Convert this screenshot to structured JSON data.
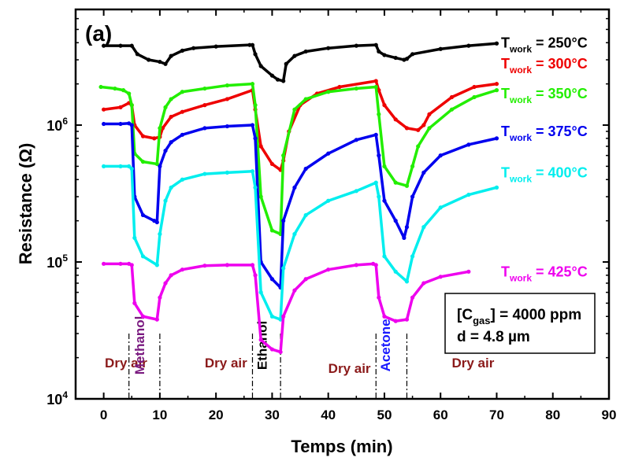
{
  "chart_data": {
    "type": "line",
    "panel_label": "(a)",
    "xlabel": "Temps (min)",
    "ylabel": "Resistance (Ω)",
    "xlim": [
      -5,
      90
    ],
    "ylim": [
      10000,
      7000000
    ],
    "yscale": "log",
    "xticks": [
      0,
      10,
      20,
      30,
      40,
      50,
      60,
      70,
      80,
      90
    ],
    "xtick_labels": [
      "0",
      "10",
      "20",
      "30",
      "40",
      "50",
      "60",
      "70",
      "80",
      "90"
    ],
    "yticks": [
      10000,
      100000,
      1000000
    ],
    "ytick_labels": [
      {
        "base": "10",
        "exp": "4"
      },
      {
        "base": "10",
        "exp": "5"
      },
      {
        "base": "10",
        "exp": "6"
      }
    ],
    "regions": [
      {
        "label": "Dry air",
        "color": "#8b1a1a",
        "vertical": false,
        "x": 0.2,
        "y": 17000
      },
      {
        "label": "Methanol",
        "color": "#7a1a80",
        "vertical": true,
        "x": 7.2,
        "y": 17000
      },
      {
        "label": "Dry air",
        "color": "#8b1a1a",
        "vertical": false,
        "x": 18,
        "y": 17000
      },
      {
        "label": "Ethanol",
        "color": "#000000",
        "vertical": true,
        "x": 29,
        "y": 17000
      },
      {
        "label": "Dry air",
        "color": "#8b1a1a",
        "vertical": false,
        "x": 40,
        "y": 15500
      },
      {
        "label": "Acetone",
        "color": "#1a1aff",
        "vertical": true,
        "x": 51,
        "y": 17000
      },
      {
        "label": "Dry air",
        "color": "#8b1a1a",
        "vertical": false,
        "x": 62,
        "y": 17000
      }
    ],
    "dividers": [
      {
        "x": 4.5,
        "ymin": 10000,
        "ymax": 30000
      },
      {
        "x": 10,
        "ymin": 10000,
        "ymax": 30000
      },
      {
        "x": 26.5,
        "ymin": 10000,
        "ymax": 30000
      },
      {
        "x": 31.5,
        "ymin": 10000,
        "ymax": 30000
      },
      {
        "x": 48.5,
        "ymin": 10000,
        "ymax": 30000
      },
      {
        "x": 54,
        "ymin": 10000,
        "ymax": 30000
      }
    ],
    "info_box": {
      "line1_prefix": "[C",
      "line1_sub": "gas",
      "line1_suffix": "] = 4000 ppm",
      "line2": "d = 4.8 µm"
    },
    "series": [
      {
        "name_main": "T",
        "name_sub": "work",
        "name_value": " = 250°C",
        "color": "#000000",
        "label_y": 4000000,
        "x": [
          0,
          3,
          5,
          6,
          8,
          10,
          11,
          12,
          14,
          16,
          20,
          26,
          26.5,
          27,
          28,
          30,
          31,
          32,
          32.5,
          34,
          36,
          40,
          45,
          48.5,
          49,
          50,
          52,
          53.5,
          54,
          55,
          60,
          65,
          70
        ],
        "y": [
          3800000,
          3800000,
          3800000,
          3300000,
          3000000,
          2900000,
          2800000,
          3200000,
          3500000,
          3650000,
          3750000,
          3850000,
          3850000,
          3300000,
          2700000,
          2300000,
          2150000,
          2100000,
          2800000,
          3200000,
          3450000,
          3650000,
          3800000,
          3850000,
          3450000,
          3250000,
          3100000,
          3000000,
          3050000,
          3300000,
          3600000,
          3800000,
          3950000
        ]
      },
      {
        "name_main": "T",
        "name_sub": "work",
        "name_value": " = 300°C",
        "color": "#ee0000",
        "label_y": 2800000,
        "x": [
          0,
          3,
          4.5,
          5,
          5.5,
          7,
          9,
          10,
          10.5,
          12,
          14,
          18,
          22,
          26.5,
          27,
          28,
          30,
          31.5,
          32,
          33,
          35,
          38,
          42,
          48.5,
          49,
          50,
          52,
          54,
          56,
          57,
          58,
          62,
          66,
          70
        ],
        "y": [
          1300000,
          1350000,
          1450000,
          1400000,
          1000000,
          830000,
          800000,
          820000,
          950000,
          1150000,
          1250000,
          1400000,
          1550000,
          1800000,
          1300000,
          700000,
          520000,
          470000,
          550000,
          900000,
          1400000,
          1700000,
          1900000,
          2100000,
          1800000,
          1400000,
          1100000,
          950000,
          920000,
          1000000,
          1200000,
          1600000,
          1900000,
          2000000
        ]
      },
      {
        "name_main": "T",
        "name_sub": "work",
        "name_value": " = 350°C",
        "color": "#22ee00",
        "label_y": 1700000,
        "x": [
          -0.5,
          2,
          3.5,
          4.5,
          5,
          5.5,
          7,
          9.5,
          10,
          11,
          12,
          14,
          18,
          22,
          26.5,
          27,
          28,
          30,
          31.5,
          32,
          34,
          36,
          40,
          45,
          48.5,
          49,
          50,
          52,
          54,
          55,
          56,
          58,
          62,
          66,
          70
        ],
        "y": [
          1900000,
          1850000,
          1800000,
          1700000,
          1400000,
          620000,
          540000,
          520000,
          950000,
          1350000,
          1550000,
          1750000,
          1850000,
          1950000,
          2000000,
          1400000,
          300000,
          170000,
          160000,
          600000,
          1300000,
          1550000,
          1750000,
          1850000,
          1900000,
          1200000,
          500000,
          380000,
          360000,
          500000,
          700000,
          950000,
          1300000,
          1600000,
          1800000
        ]
      },
      {
        "name_main": "T",
        "name_sub": "work",
        "name_value": " = 375°C",
        "color": "#0000ee",
        "label_y": 900000,
        "x": [
          0,
          3,
          4.5,
          5,
          5.5,
          7,
          9,
          9.5,
          10,
          11,
          12,
          14,
          18,
          22,
          26.5,
          27,
          28,
          30,
          31.5,
          32,
          34,
          36,
          40,
          45,
          48.5,
          49,
          50,
          52,
          53.5,
          54,
          55,
          57,
          60,
          65,
          70
        ],
        "y": [
          1020000,
          1020000,
          1030000,
          1000000,
          300000,
          220000,
          200000,
          195000,
          500000,
          650000,
          750000,
          850000,
          950000,
          980000,
          1000000,
          800000,
          100000,
          75000,
          65000,
          200000,
          350000,
          480000,
          620000,
          780000,
          850000,
          600000,
          280000,
          200000,
          150000,
          180000,
          300000,
          450000,
          600000,
          720000,
          800000
        ]
      },
      {
        "name_main": "T",
        "name_sub": "work",
        "name_value": " = 400°C",
        "color": "#00eeee",
        "label_y": 450000,
        "x": [
          0,
          3,
          4.5,
          5,
          5.5,
          7,
          9.5,
          10,
          11,
          12,
          14,
          18,
          22,
          26.5,
          27,
          28,
          30,
          31.5,
          32,
          34,
          36,
          40,
          45,
          48.5,
          49,
          50,
          52,
          54,
          55,
          57,
          60,
          65,
          70
        ],
        "y": [
          500000,
          500000,
          500000,
          480000,
          150000,
          110000,
          95000,
          160000,
          280000,
          350000,
          400000,
          440000,
          450000,
          460000,
          350000,
          60000,
          40000,
          38000,
          90000,
          160000,
          220000,
          280000,
          330000,
          380000,
          300000,
          110000,
          85000,
          72000,
          110000,
          180000,
          250000,
          310000,
          350000
        ]
      },
      {
        "name_main": "T",
        "name_sub": "work",
        "name_value": " = 425°C",
        "color": "#ee00ee",
        "label_y": 85000,
        "x": [
          0,
          3,
          4.5,
          5,
          5.5,
          7,
          9.5,
          10,
          11,
          12,
          14,
          18,
          22,
          26.5,
          27,
          28,
          30,
          31.5,
          32,
          34,
          36,
          40,
          45,
          48,
          48.5,
          49,
          50,
          52,
          54,
          55,
          57,
          60,
          65
        ],
        "y": [
          97000,
          97000,
          97000,
          95000,
          50000,
          40000,
          38000,
          55000,
          70000,
          80000,
          88000,
          94000,
          95000,
          95000,
          80000,
          27000,
          23000,
          22000,
          40000,
          62000,
          75000,
          88000,
          95000,
          97000,
          95000,
          55000,
          40000,
          37000,
          38000,
          55000,
          70000,
          78000,
          85000
        ]
      }
    ]
  }
}
